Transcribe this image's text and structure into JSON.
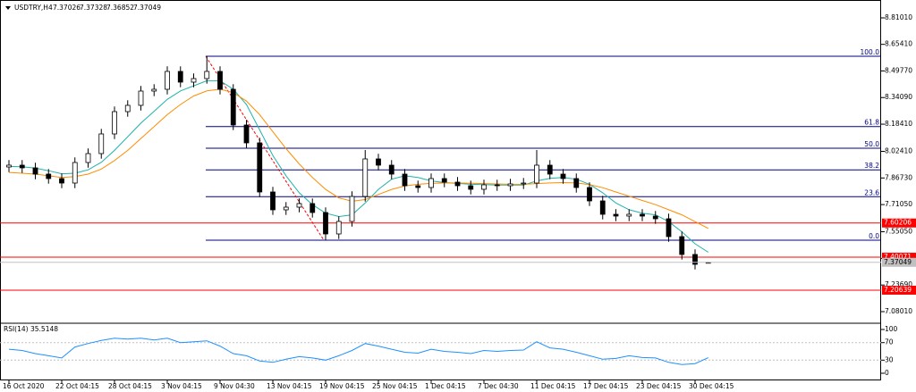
{
  "chart_data": [
    {
      "type": "candlestick",
      "title": "USDTRY,H4",
      "categories": [
        "16 Oct 2020",
        null,
        null,
        null,
        "22 Oct 04:15",
        null,
        null,
        null,
        "28 Oct 04:15",
        null,
        null,
        null,
        "3 Nov 04:15",
        null,
        null,
        null,
        "9 Nov 04:30",
        null,
        null,
        null,
        "13 Nov 04:15",
        null,
        null,
        null,
        "19 Nov 04:15",
        null,
        null,
        null,
        "25 Nov 04:15",
        null,
        null,
        null,
        "1 Dec 04:15",
        null,
        null,
        null,
        "7 Dec 04:30",
        null,
        null,
        null,
        "11 Dec 04:15",
        null,
        null,
        null,
        "17 Dec 04:15",
        null,
        null,
        null,
        "23 Dec 04:15",
        null,
        null,
        null,
        "30 Dec 04:15",
        null
      ],
      "open": [
        7.932,
        7.9426,
        7.9268,
        7.89,
        7.8637,
        7.8374,
        7.9583,
        8.0109,
        8.1266,
        8.258,
        8.2949,
        8.379,
        8.3895,
        8.4947,
        8.4316,
        8.4526,
        8.4947,
        8.3895,
        8.1792,
        8.074,
        7.7848,
        7.6797,
        7.6954,
        7.7165,
        7.6639,
        7.5377,
        7.6113,
        7.7585,
        7.9794,
        7.9426,
        7.89,
        7.8216,
        7.8111,
        7.8637,
        7.8427,
        7.8216,
        7.8006,
        7.8269,
        7.8216,
        7.8322,
        7.8374,
        7.9426,
        7.89,
        7.8637,
        7.8111,
        7.7322,
        7.6534,
        7.6429,
        7.6534,
        7.6429,
        7.6271,
        7.5219,
        7.4168,
        7.37026
      ],
      "high": [
        7.9726,
        7.9726,
        7.9568,
        7.92,
        7.8937,
        7.9883,
        8.0409,
        8.1566,
        8.288,
        8.3249,
        8.409,
        8.4195,
        8.5247,
        8.5247,
        8.4826,
        8.584,
        8.5247,
        8.4195,
        8.2092,
        8.104,
        7.8148,
        7.7254,
        7.7465,
        7.7465,
        7.6939,
        7.6413,
        7.7885,
        8.032,
        8.0094,
        7.9726,
        7.92,
        7.8516,
        7.8937,
        7.8937,
        7.8727,
        7.8516,
        7.8569,
        7.8569,
        7.8622,
        7.8674,
        8.032,
        7.9726,
        7.92,
        7.8937,
        7.8411,
        7.7622,
        7.6834,
        7.6834,
        7.6834,
        7.6729,
        7.6571,
        7.5519,
        7.4468,
        7.37328
      ],
      "low": [
        7.902,
        7.8968,
        7.86,
        7.8337,
        7.8074,
        7.8074,
        7.9283,
        7.9809,
        8.0966,
        8.228,
        8.2649,
        8.349,
        8.3595,
        8.4016,
        8.4016,
        8.4226,
        8.3595,
        8.1492,
        8.044,
        7.7548,
        7.6497,
        7.6497,
        7.6654,
        7.6339,
        7.501,
        7.5077,
        7.5813,
        7.7285,
        7.9126,
        7.86,
        7.7916,
        7.7811,
        7.7811,
        7.8127,
        7.7916,
        7.7706,
        7.7706,
        7.7916,
        7.7916,
        7.8022,
        7.8074,
        7.86,
        7.8337,
        7.7811,
        7.7022,
        7.6234,
        7.6129,
        7.6129,
        7.6129,
        7.5971,
        7.4919,
        7.3868,
        7.3289,
        7.36852
      ],
      "close": [
        7.9426,
        7.9268,
        7.89,
        7.8637,
        7.8374,
        7.9583,
        8.0109,
        8.1266,
        8.258,
        8.2949,
        8.379,
        8.3895,
        8.4947,
        8.4316,
        8.4526,
        8.4947,
        8.3895,
        8.1792,
        8.074,
        7.7848,
        7.6797,
        7.6954,
        7.7165,
        7.6639,
        7.5377,
        7.6113,
        7.7585,
        7.9794,
        7.9426,
        7.89,
        7.8216,
        7.8111,
        7.8637,
        7.8427,
        7.8216,
        7.8006,
        7.8269,
        7.8216,
        7.8322,
        7.8374,
        7.9426,
        7.89,
        7.8637,
        7.8111,
        7.7322,
        7.6534,
        7.6429,
        7.6534,
        7.6429,
        7.6271,
        7.5219,
        7.4168,
        7.3589,
        7.37049
      ],
      "moving_averages": [
        {
          "color": "#20b2aa",
          "values": [
            7.935,
            7.933,
            7.925,
            7.91,
            7.892,
            7.895,
            7.915,
            7.96,
            8.03,
            8.11,
            8.19,
            8.26,
            8.33,
            8.38,
            8.41,
            8.44,
            8.44,
            8.39,
            8.3,
            8.15,
            8.0,
            7.88,
            7.78,
            7.71,
            7.66,
            7.64,
            7.65,
            7.72,
            7.8,
            7.86,
            7.88,
            7.87,
            7.85,
            7.84,
            7.835,
            7.83,
            7.828,
            7.826,
            7.825,
            7.826,
            7.85,
            7.865,
            7.87,
            7.86,
            7.83,
            7.78,
            7.72,
            7.68,
            7.66,
            7.65,
            7.61,
            7.55,
            7.48,
            7.43
          ]
        },
        {
          "color": "#ff8c00",
          "values": [
            7.9,
            7.895,
            7.89,
            7.88,
            7.87,
            7.875,
            7.89,
            7.92,
            7.97,
            8.03,
            8.1,
            8.17,
            8.24,
            8.3,
            8.35,
            8.38,
            8.39,
            8.37,
            8.32,
            8.24,
            8.14,
            8.04,
            7.95,
            7.87,
            7.8,
            7.75,
            7.73,
            7.74,
            7.77,
            7.8,
            7.82,
            7.83,
            7.835,
            7.838,
            7.838,
            7.836,
            7.834,
            7.832,
            7.83,
            7.83,
            7.834,
            7.838,
            7.84,
            7.838,
            7.828,
            7.81,
            7.785,
            7.76,
            7.735,
            7.71,
            7.68,
            7.65,
            7.61,
            7.57
          ]
        }
      ],
      "hlines": {
        "color": "#ff0000",
        "values": [
          7.60206,
          7.40071,
          7.20639
        ]
      },
      "fib": {
        "color": "#000080",
        "trend_color": "#ff0000",
        "levels": [
          {
            "label": "100.0",
            "value": 8.584
          },
          {
            "label": "61.8",
            "value": 8.17
          },
          {
            "label": "50.0",
            "value": 8.0425
          },
          {
            "label": "38.2",
            "value": 7.915
          },
          {
            "label": "23.6",
            "value": 7.757
          },
          {
            "label": "0.0",
            "value": 7.501
          }
        ]
      },
      "ylim": [
        7.0118,
        8.9153
      ],
      "yticks": [
        {
          "value": 8.8101,
          "label": "8.81010"
        },
        {
          "value": 8.6541,
          "label": "8.65410"
        },
        {
          "value": 8.4977,
          "label": "8.49770"
        },
        {
          "value": 8.3409,
          "label": "8.34090"
        },
        {
          "value": 8.1841,
          "label": "8.18410"
        },
        {
          "value": 8.0241,
          "label": "8.02410"
        },
        {
          "value": 7.8673,
          "label": "7.86730"
        },
        {
          "value": 7.7105,
          "label": "7.71050"
        },
        {
          "value": 7.5505,
          "label": "7.55050"
        },
        {
          "value": 7.3937,
          "label": "7.39370"
        },
        {
          "value": 7.2369,
          "label": "7.23690"
        },
        {
          "value": 7.0801,
          "label": "7.08010"
        }
      ]
    },
    {
      "type": "line",
      "title": "RSI(14)",
      "color": "#1e90ff",
      "values": [
        55,
        52,
        45,
        40,
        35,
        60,
        68,
        75,
        80,
        78,
        80,
        76,
        80,
        70,
        72,
        74,
        62,
        45,
        40,
        28,
        25,
        32,
        38,
        35,
        30,
        40,
        52,
        68,
        62,
        55,
        48,
        46,
        55,
        50,
        48,
        45,
        52,
        50,
        52,
        53,
        72,
        58,
        55,
        48,
        40,
        32,
        34,
        40,
        36,
        35,
        25,
        20,
        22,
        35.5148
      ],
      "ylim": [
        -16.3,
        114.3
      ],
      "yticks": [
        100,
        70,
        30,
        0
      ]
    }
  ]
}
